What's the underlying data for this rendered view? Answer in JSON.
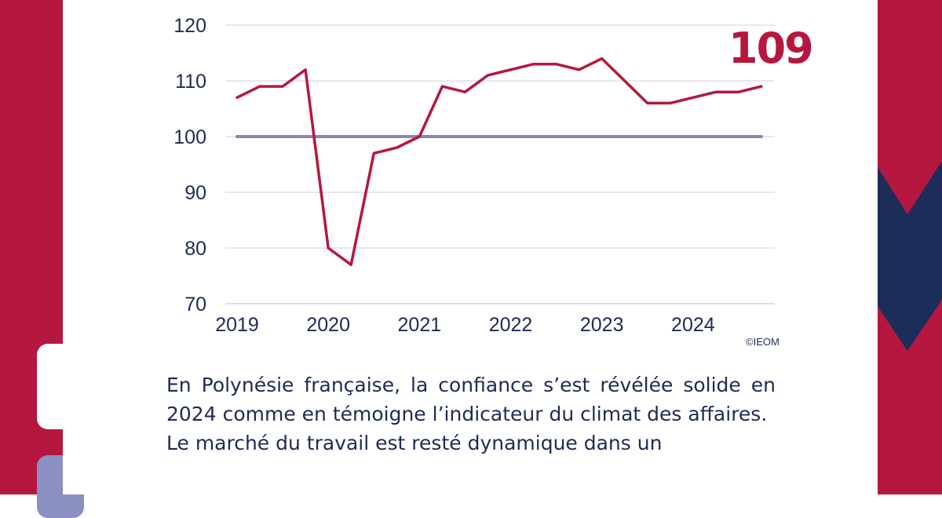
{
  "colors": {
    "brand_red": "#b5173e",
    "navy": "#1c2d5a",
    "lavender": "#8b8fc4",
    "reference_line": "#8b84bb",
    "grid": "#d9d6e4",
    "text": "#1f2a55"
  },
  "headline_value": "109",
  "copyright": "©IEOM",
  "paragraphs": [
    "En Polynésie française, la confiance s’est révélée solide en 2024 comme en témoigne l’indicateur du climat des affaires.",
    "Le marché du travail est resté dynamique dans un"
  ],
  "chart_data": {
    "type": "line",
    "title": "",
    "xlabel": "",
    "ylabel": "",
    "ylim": [
      70,
      120
    ],
    "yticks": [
      "70",
      "80",
      "90",
      "100",
      "110",
      "120"
    ],
    "xtick_labels": [
      "2019",
      "2020",
      "2021",
      "2022",
      "2023",
      "2024"
    ],
    "grid": true,
    "x": [
      "2019T1",
      "2019T2",
      "2019T3",
      "2019T4",
      "2020T1",
      "2020T2",
      "2020T3",
      "2020T4",
      "2021T1",
      "2021T2",
      "2021T3",
      "2021T4",
      "2022T1",
      "2022T2",
      "2022T3",
      "2022T4",
      "2023T1",
      "2023T2",
      "2023T3",
      "2023T4",
      "2024T1",
      "2024T2",
      "2024T3",
      "2024T4"
    ],
    "series": [
      {
        "values": [
          107,
          109,
          109,
          112,
          80,
          77,
          97,
          98,
          100,
          109,
          108,
          111,
          112,
          113,
          113,
          112,
          114,
          110,
          106,
          106,
          107,
          108,
          108,
          109
        ],
        "color": "#b5173e"
      },
      {
        "values": [
          100,
          100,
          100,
          100,
          100,
          100,
          100,
          100,
          100,
          100,
          100,
          100,
          100,
          100,
          100,
          100,
          100,
          100,
          100,
          100,
          100,
          100,
          100,
          100
        ],
        "color": "#8b84bb"
      }
    ]
  }
}
